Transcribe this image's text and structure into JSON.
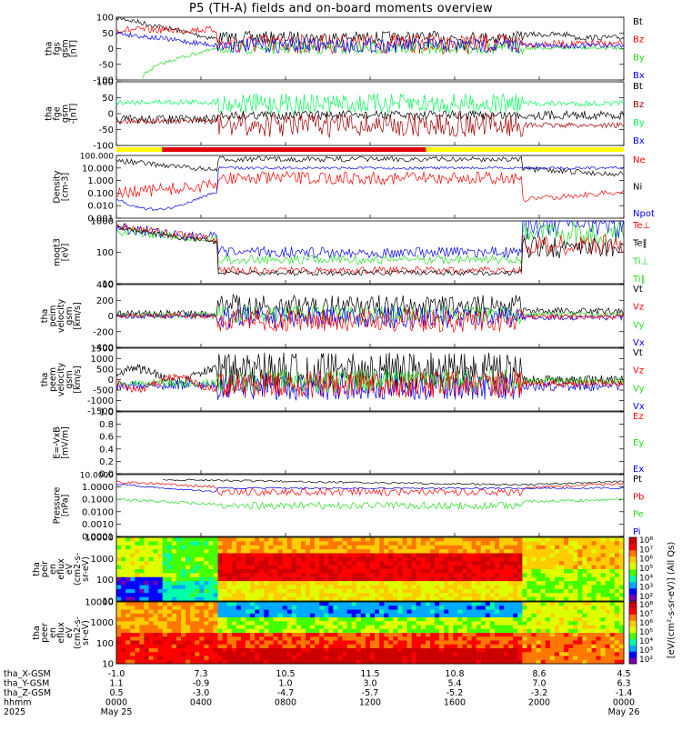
{
  "title": "P5 (TH-A) fields and on-board moments overview",
  "colors": {
    "black": "#000000",
    "red": "#ff0000",
    "green": "#22dd22",
    "blue": "#0000ff",
    "darkred": "#a00000",
    "bright_green": "#00ff55",
    "yellow": "#ffff00",
    "mode_red": "#e00000"
  },
  "chart_data": {
    "type": "line",
    "x_ticks": {
      "rows": [
        {
          "label": "tha_X-GSM",
          "values": [
            "-1.0",
            "7.3",
            "10.5",
            "11.5",
            "10.8",
            "8.6",
            "4.5"
          ]
        },
        {
          "label": "tha_Y-GSM",
          "values": [
            "1.1",
            "-0.9",
            "1.0",
            "3.0",
            "5.4",
            "7.0",
            "6.3"
          ]
        },
        {
          "label": "tha_Z-GSM",
          "values": [
            "0.5",
            "-3.0",
            "-4.7",
            "-5.7",
            "-5.2",
            "-3.2",
            "-1.4"
          ]
        },
        {
          "label": "hhmm",
          "values": [
            "0000",
            "0400",
            "0800",
            "1200",
            "1600",
            "2000",
            "0000"
          ]
        },
        {
          "label": "2025",
          "values": [
            "May 25",
            "",
            "",
            "",
            "",
            "",
            "May 26"
          ]
        }
      ]
    },
    "panels": [
      {
        "key": "fgs",
        "ylabel": [
          "tha",
          "fgs",
          "gsm",
          "[nT]"
        ],
        "yticks": [
          "100",
          "50",
          "0",
          "-50",
          "-100"
        ],
        "legend": [
          {
            "text": "Bt",
            "color": "#000000"
          },
          {
            "text": "Bz",
            "color": "#ff0000"
          },
          {
            "text": "By",
            "color": "#22dd22"
          },
          {
            "text": "Bx",
            "color": "#0000ff"
          }
        ]
      },
      {
        "key": "fge",
        "ylabel": [
          "tha",
          "fge",
          "gsm",
          "-[nT]"
        ],
        "yticks": [
          "100",
          "50",
          "0",
          "-50",
          "-100"
        ],
        "legend": [
          {
            "text": "Bt",
            "color": "#000000"
          },
          {
            "text": "Bz",
            "color": "#a00000"
          },
          {
            "text": "By",
            "color": "#00ff55"
          },
          {
            "text": "Bx",
            "color": "#0000ff"
          }
        ]
      },
      {
        "key": "density",
        "ylabel": [
          "Density",
          "[cm-3]"
        ],
        "yticks": [
          "100.000",
          "10.000",
          "1.000",
          "0.100",
          "0.010",
          "0.001"
        ],
        "legend": [
          {
            "text": "Ne",
            "color": "#ff0000"
          },
          {
            "text": "Ni",
            "color": "#000000"
          },
          {
            "text": "Npot",
            "color": "#0000ff"
          }
        ]
      },
      {
        "key": "temp",
        "ylabel": [
          "moqt3",
          "[eV]"
        ],
        "yticks": [
          "1000",
          "100",
          "10"
        ],
        "legend": [
          {
            "text": "Te⊥",
            "color": "#ff0000"
          },
          {
            "text": "Te‖",
            "color": "#000000"
          },
          {
            "text": "Ti⊥",
            "color": "#22dd22"
          },
          {
            "text": "Ti‖",
            "color": "#22dd22"
          }
        ]
      },
      {
        "key": "vi",
        "ylabel": [
          "tha",
          "peim",
          "velocity",
          "gsm",
          "[km/s]"
        ],
        "yticks": [
          "400",
          "200",
          "0",
          "-200",
          "-400"
        ],
        "legend": [
          {
            "text": "Vt",
            "color": "#000000"
          },
          {
            "text": "Vz",
            "color": "#ff0000"
          },
          {
            "text": "Vy",
            "color": "#22dd22"
          },
          {
            "text": "Vx",
            "color": "#0000ff"
          }
        ]
      },
      {
        "key": "ve",
        "ylabel": [
          "tha",
          "peem",
          "velocity",
          "gsm",
          "[km/s]"
        ],
        "yticks": [
          "1500",
          "1000",
          "500",
          "0",
          "-500",
          "-1000",
          "-1500"
        ],
        "legend": [
          {
            "text": "Vt",
            "color": "#000000"
          },
          {
            "text": "Vz",
            "color": "#ff0000"
          },
          {
            "text": "Vy",
            "color": "#22dd22"
          },
          {
            "text": "Vx",
            "color": "#0000ff"
          }
        ]
      },
      {
        "key": "efield",
        "ylabel": [
          "E=-VxB",
          "[mV/m]"
        ],
        "yticks": [
          "1.0",
          "0.8",
          "0.6",
          "0.4",
          "0.2",
          "0.0"
        ],
        "legend": [
          {
            "text": "Ez",
            "color": "#ff0000"
          },
          {
            "text": "Ey",
            "color": "#22dd22"
          },
          {
            "text": "Ex",
            "color": "#0000ff"
          }
        ]
      },
      {
        "key": "pressure",
        "ylabel": [
          "Pressure",
          "[nPa]"
        ],
        "yticks": [
          "10.0000",
          "1.0000",
          "0.1000",
          "0.0100",
          "0.0010",
          "0.0001"
        ],
        "legend": [
          {
            "text": "Pt",
            "color": "#000000"
          },
          {
            "text": "Pb",
            "color": "#ff0000"
          },
          {
            "text": "Pe",
            "color": "#22dd22"
          },
          {
            "text": "Pi",
            "color": "#0000ff"
          }
        ]
      },
      {
        "key": "ion_spec",
        "ylabel": [
          "tha",
          "peir",
          "en",
          "eflux",
          "eV",
          "(cm2-s-",
          "sr-eV)"
        ],
        "yticks": [
          "10000",
          "1000",
          "100",
          "10"
        ],
        "legend": []
      },
      {
        "key": "el_spec",
        "ylabel": [
          "tha",
          "peer",
          "en",
          "eflux",
          "eV",
          "(cm2-s-",
          "sr-eV)"
        ],
        "yticks": [
          "10000",
          "1000",
          "100",
          "10"
        ],
        "legend": []
      }
    ],
    "colorbar": {
      "label": "[eV/(cm²-s-sr-eV)] (All Qs)",
      "ion_ticks": [
        "10⁸",
        "10⁷",
        "10⁶",
        "10⁵",
        "10⁴",
        "10³",
        "10²"
      ],
      "el_ticks": [
        "10⁸",
        "10⁷",
        "10⁶",
        "10⁵",
        "10⁴",
        "10³",
        "10²"
      ]
    }
  }
}
